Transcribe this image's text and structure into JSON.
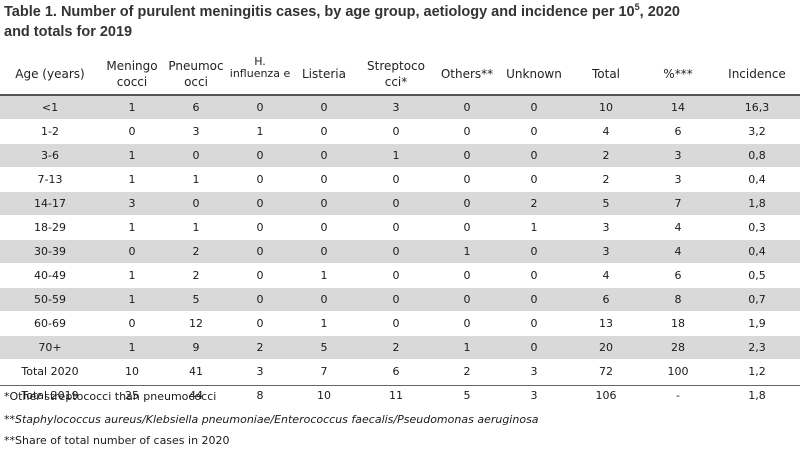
{
  "title": {
    "line1_prefix": "Table 1. Number of purulent meningitis cases, by age group, aetiology and incidence per 10",
    "sup": "5",
    "line1_suffix": ", 2020",
    "line2": "and totals for 2019"
  },
  "headers": {
    "age": "Age (years)",
    "meningo": "Meningo cocci",
    "pneumo": "Pneumoc occi",
    "hinfl": "H. influenza e",
    "listeria": "Listeria",
    "strepto": "Streptoco cci*",
    "others": "Others**",
    "unknown": "Unknown",
    "total": "Total",
    "pct": "%***",
    "incidence": "Incidence"
  },
  "rows": [
    {
      "age": "<1",
      "meningo": "1",
      "pneumo": "6",
      "hinfl": "0",
      "listeria": "0",
      "strepto": "3",
      "others": "0",
      "unknown": "0",
      "total": "10",
      "pct": "14",
      "incidence": "16,3"
    },
    {
      "age": "1-2",
      "meningo": "0",
      "pneumo": "3",
      "hinfl": "1",
      "listeria": "0",
      "strepto": "0",
      "others": "0",
      "unknown": "0",
      "total": "4",
      "pct": "6",
      "incidence": "3,2"
    },
    {
      "age": "3-6",
      "meningo": "1",
      "pneumo": "0",
      "hinfl": "0",
      "listeria": "0",
      "strepto": "1",
      "others": "0",
      "unknown": "0",
      "total": "2",
      "pct": "3",
      "incidence": "0,8"
    },
    {
      "age": "7-13",
      "meningo": "1",
      "pneumo": "1",
      "hinfl": "0",
      "listeria": "0",
      "strepto": "0",
      "others": "0",
      "unknown": "0",
      "total": "2",
      "pct": "3",
      "incidence": "0,4"
    },
    {
      "age": "14-17",
      "meningo": "3",
      "pneumo": "0",
      "hinfl": "0",
      "listeria": "0",
      "strepto": "0",
      "others": "0",
      "unknown": "2",
      "total": "5",
      "pct": "7",
      "incidence": "1,8"
    },
    {
      "age": "18-29",
      "meningo": "1",
      "pneumo": "1",
      "hinfl": "0",
      "listeria": "0",
      "strepto": "0",
      "others": "0",
      "unknown": "1",
      "total": "3",
      "pct": "4",
      "incidence": "0,3"
    },
    {
      "age": "30-39",
      "meningo": "0",
      "pneumo": "2",
      "hinfl": "0",
      "listeria": "0",
      "strepto": "0",
      "others": "1",
      "unknown": "0",
      "total": "3",
      "pct": "4",
      "incidence": "0,4"
    },
    {
      "age": "40-49",
      "meningo": "1",
      "pneumo": "2",
      "hinfl": "0",
      "listeria": "1",
      "strepto": "0",
      "others": "0",
      "unknown": "0",
      "total": "4",
      "pct": "6",
      "incidence": "0,5"
    },
    {
      "age": "50-59",
      "meningo": "1",
      "pneumo": "5",
      "hinfl": "0",
      "listeria": "0",
      "strepto": "0",
      "others": "0",
      "unknown": "0",
      "total": "6",
      "pct": "8",
      "incidence": "0,7"
    },
    {
      "age": "60-69",
      "meningo": "0",
      "pneumo": "12",
      "hinfl": "0",
      "listeria": "1",
      "strepto": "0",
      "others": "0",
      "unknown": "0",
      "total": "13",
      "pct": "18",
      "incidence": "1,9"
    },
    {
      "age": "70+",
      "meningo": "1",
      "pneumo": "9",
      "hinfl": "2",
      "listeria": "5",
      "strepto": "2",
      "others": "1",
      "unknown": "0",
      "total": "20",
      "pct": "28",
      "incidence": "2,3"
    },
    {
      "age": "Total 2020",
      "meningo": "10",
      "pneumo": "41",
      "hinfl": "3",
      "listeria": "7",
      "strepto": "6",
      "others": "2",
      "unknown": "3",
      "total": "72",
      "pct": "100",
      "incidence": "1,2"
    },
    {
      "age": "Total 2019",
      "meningo": "25",
      "pneumo": "44",
      "hinfl": "8",
      "listeria": "10",
      "strepto": "11",
      "others": "5",
      "unknown": "3",
      "total": "106",
      "pct": "-",
      "incidence": "1,8"
    }
  ],
  "footnotes": {
    "note1": "*Other streptococci than pneumococci",
    "note2": "**Staphylococcus aureus/Klebsiella pneumoniae/Enterococcus faecalis/Pseudomonas aeruginosa",
    "note3": "**Share of total number of cases in 2020"
  },
  "colors": {
    "shade": "#d9d9d9",
    "rule": "#555555"
  }
}
